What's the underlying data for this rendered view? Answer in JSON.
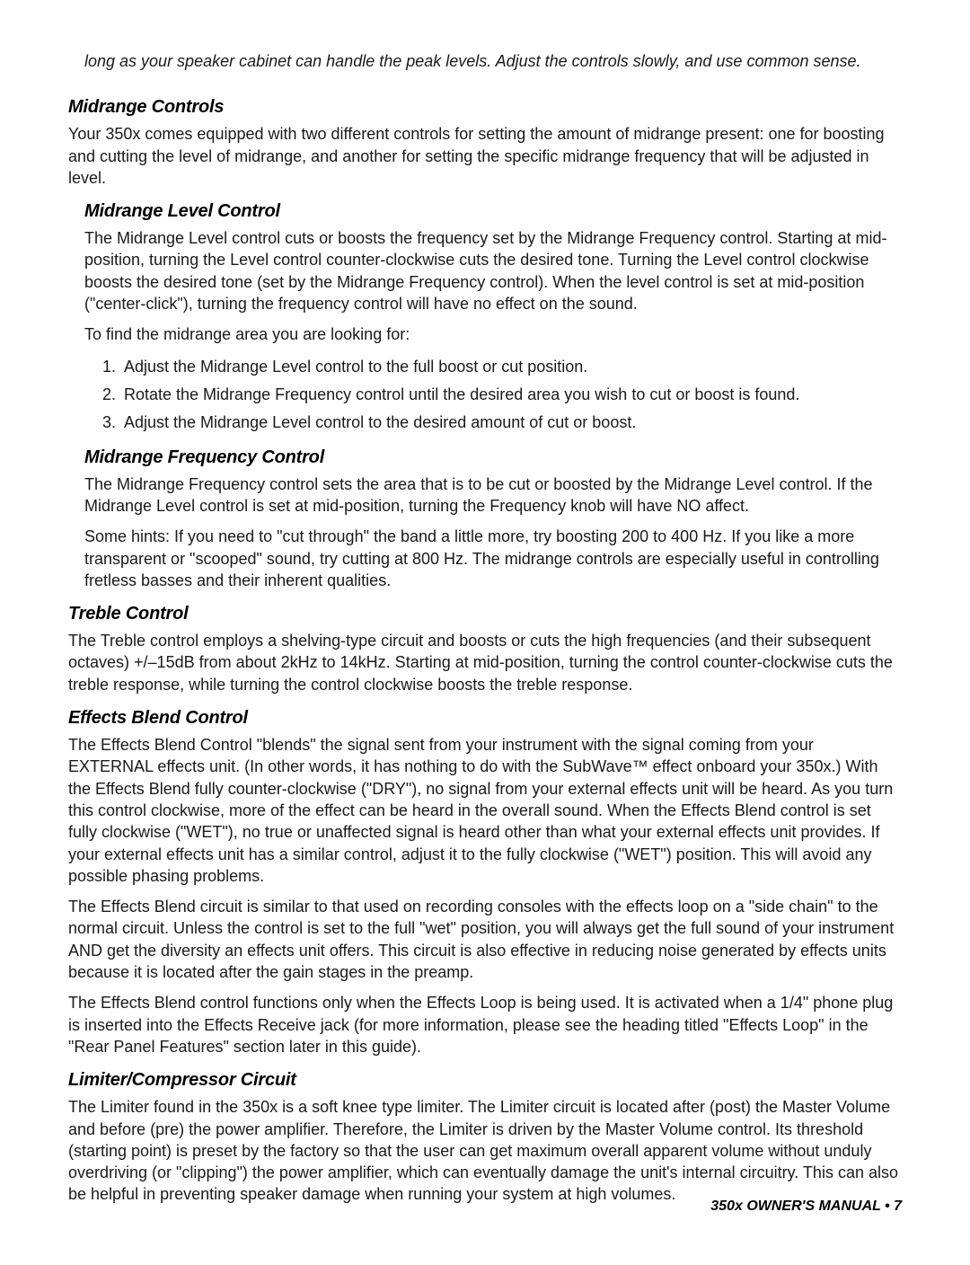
{
  "intro": "long as your speaker cabinet can handle the peak levels. Adjust the controls slowly, and use common sense.",
  "sections": {
    "midrange_controls": {
      "title": "Midrange Controls",
      "body": "Your 350x comes equipped with two different controls for setting the amount of midrange present: one for boosting and cutting the level of midrange, and another for setting the specific midrange frequency that will be adjusted in level."
    },
    "midrange_level": {
      "title": "Midrange Level Control",
      "p1": "The Midrange Level control cuts or boosts the frequency set by the Midrange Frequency control. Starting at mid-position, turning the Level control counter-clockwise cuts the desired tone. Turning the Level control clockwise boosts the desired tone (set by the Midrange Frequency control). When the level control is set at mid-position (\"center-click\"), turning the frequency control will have no effect on the sound.",
      "p2": "To find the midrange area you are looking for:",
      "steps": [
        "Adjust the Midrange Level control to the full boost or cut position.",
        "Rotate the Midrange Frequency control until the desired area you wish to cut or boost is found.",
        "Adjust the Midrange Level control to the desired amount of cut or boost."
      ]
    },
    "midrange_freq": {
      "title": "Midrange Frequency Control",
      "p1": "The Midrange Frequency control sets the area that is to be cut or boosted by the Midrange Level control. If the Midrange Level control is set at mid-position, turning the Frequency knob will have NO affect.",
      "p2": "Some hints: If you need to \"cut through\" the band a little more, try boosting 200 to 400 Hz. If you like a more transparent or \"scooped\" sound, try cutting at 800 Hz. The midrange controls are especially useful in controlling fretless basses and their inherent qualities."
    },
    "treble": {
      "title": "Treble Control",
      "body": "The Treble control employs a shelving-type circuit and boosts or cuts the high frequencies (and their subsequent octaves) +/–15dB from about 2kHz to 14kHz. Starting at mid-position, turning the control counter-clockwise cuts the treble response, while turning the control clockwise boosts the treble response."
    },
    "effects_blend": {
      "title": "Effects Blend Control",
      "p1": "The Effects Blend Control \"blends\" the signal sent from your instrument with the signal coming from your EXTERNAL effects unit. (In other words, it has nothing to do with the SubWave™ effect onboard your 350x.) With the Effects Blend fully counter-clockwise (\"DRY\"), no signal from your external effects unit will be heard. As you turn this control clockwise, more of the effect can be heard in the overall sound. When the Effects Blend control is set fully clockwise (\"WET\"), no true or unaffected signal is heard other than what your external effects unit provides. If your external effects unit has a similar control, adjust it to the fully clockwise (\"WET\") position. This will avoid any possible phasing problems.",
      "p2": "The Effects Blend circuit is similar to that used on recording consoles with the effects loop on a \"side chain\" to the normal circuit. Unless the control is set to the full \"wet\" position, you will always get the full sound of your instrument AND get the diversity an effects unit offers. This circuit is also effective in reducing noise generated by effects units because it is located after the gain stages in the preamp.",
      "p3": "The Effects Blend control functions only when the Effects Loop is being used. It is activated when a 1/4\" phone plug is inserted into the Effects Receive jack (for more information, please see the heading titled \"Effects Loop\" in the \"Rear Panel Features\" section later in this guide)."
    },
    "limiter": {
      "title": "Limiter/Compressor Circuit",
      "body": "The Limiter found in the 350x is a soft knee type limiter. The Limiter circuit is located after (post) the Master Volume and before (pre) the power amplifier. Therefore, the Limiter is driven by the Master Volume control. Its threshold (starting point) is preset by the factory so that the user can get maximum overall apparent volume without unduly overdriving (or \"clipping\") the power amplifier, which can eventually damage the unit's internal circuitry. This can also be helpful in preventing speaker damage when running your system at high volumes."
    }
  },
  "footer": "350x OWNER'S MANUAL • 7"
}
